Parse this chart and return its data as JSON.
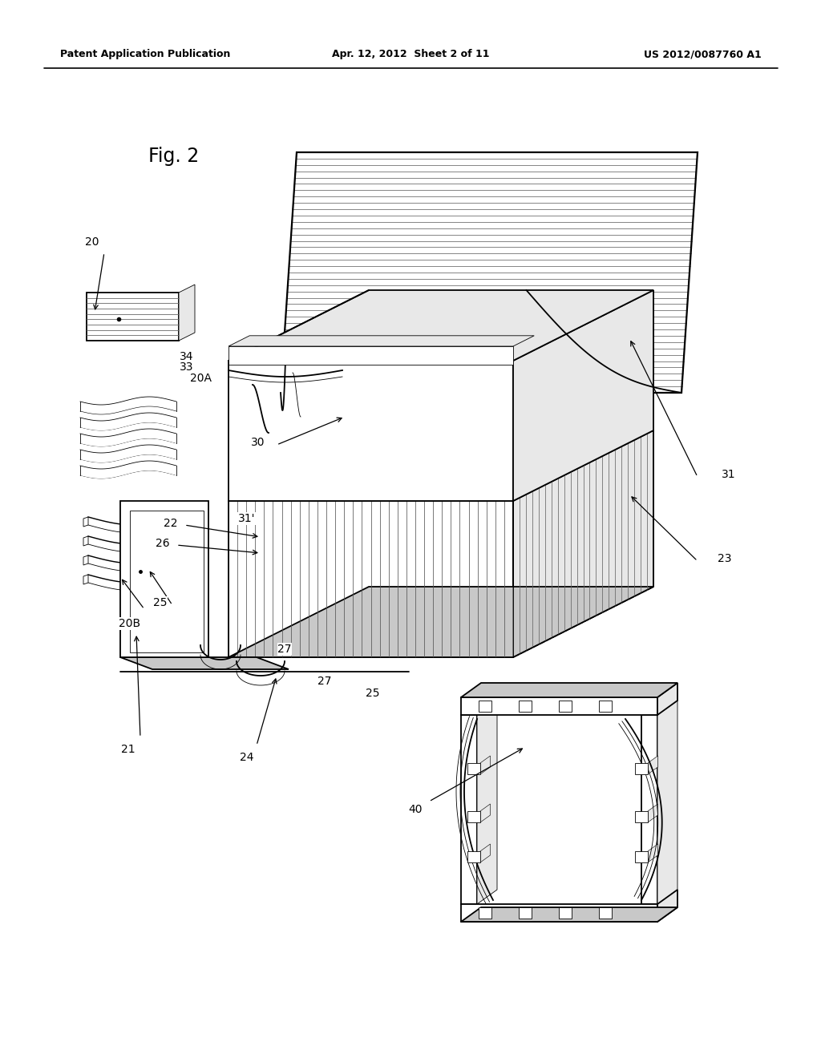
{
  "header_left": "Patent Application Publication",
  "header_center": "Apr. 12, 2012  Sheet 2 of 11",
  "header_right": "US 2012/0087760 A1",
  "fig_label": "Fig. 2",
  "background": "#ffffff",
  "lw_main": 1.3,
  "lw_thin": 0.6,
  "lw_thick": 2.0,
  "lw_med": 0.9,
  "font_size_header": 9,
  "font_size_fig": 16,
  "font_size_label": 10,
  "gray_light": "#e8e8e8",
  "gray_mid": "#c8c8c8",
  "gray_dark": "#a0a0a0"
}
